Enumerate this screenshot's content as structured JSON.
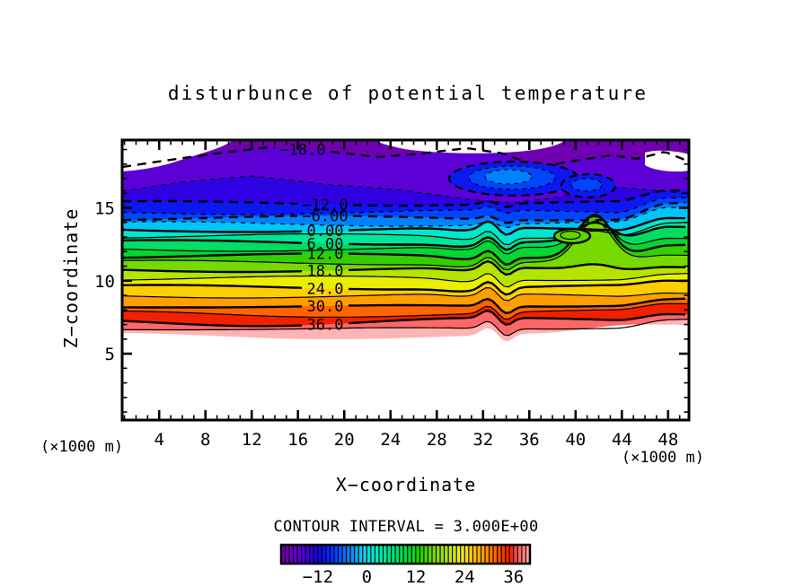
{
  "title": "disturbunce  of  potential  temperature",
  "axes": {
    "x": {
      "label": "X−coordinate",
      "unit_left": "(×1000 m)",
      "unit_right": "(×1000 m)",
      "range": [
        0.8,
        49.8
      ],
      "major_ticks": [
        4,
        8,
        12,
        16,
        20,
        24,
        28,
        32,
        36,
        40,
        44,
        48
      ],
      "minor_step": 1
    },
    "y": {
      "label": "Z−coordinate",
      "range": [
        0.45,
        19.65
      ],
      "major_ticks": [
        5,
        10,
        15
      ],
      "minor_step": 1
    }
  },
  "colorbar": {
    "title": "CONTOUR INTERVAL  =  3.000E+00",
    "min": -21,
    "max": 40,
    "cell_step": 1,
    "ticks": [
      {
        "value": -12,
        "label": "−12"
      },
      {
        "value": 0,
        "label": "0"
      },
      {
        "value": 12,
        "label": "12"
      },
      {
        "value": 24,
        "label": "24"
      },
      {
        "value": 36,
        "label": "36"
      }
    ]
  },
  "chart_data": {
    "type": "heatmap",
    "subtype": "filled_contour",
    "title": "disturbunce of potential temperature",
    "xlabel": "X−coordinate",
    "ylabel": "Z−coordinate",
    "x_range_x1000m": [
      1,
      49
    ],
    "z_range_x1000m": [
      0.5,
      19.5
    ],
    "contour_interval": 3.0,
    "levels": [
      -18,
      -15,
      -12,
      -9,
      -6,
      -3,
      0,
      3,
      6,
      9,
      12,
      15,
      18,
      21,
      24,
      27,
      30,
      33,
      36,
      39
    ],
    "line_style": {
      "negative": "dashed",
      "positive": "solid",
      "bold_every": 6
    },
    "contour_labels": [
      {
        "level": -18,
        "text": "−18.0"
      },
      {
        "level": -12,
        "text": "−12.0"
      },
      {
        "level": -6,
        "text": "−6.00"
      },
      {
        "level": 0,
        "text": "0.00"
      },
      {
        "level": 6,
        "text": "6.00"
      },
      {
        "level": 12,
        "text": "12.0"
      },
      {
        "level": 18,
        "text": "18.0"
      },
      {
        "level": 24,
        "text": "24.0"
      },
      {
        "level": 30,
        "text": "30.0"
      },
      {
        "level": 36,
        "text": "36.0"
      }
    ],
    "colormap": [
      {
        "v": -21,
        "c": [
          120,
          0,
          160
        ]
      },
      {
        "v": -16,
        "c": [
          90,
          0,
          220
        ]
      },
      {
        "v": -12,
        "c": [
          20,
          0,
          230
        ]
      },
      {
        "v": -8,
        "c": [
          0,
          60,
          255
        ]
      },
      {
        "v": -4,
        "c": [
          0,
          140,
          255
        ]
      },
      {
        "v": -1,
        "c": [
          0,
          210,
          245
        ]
      },
      {
        "v": 2,
        "c": [
          0,
          235,
          200
        ]
      },
      {
        "v": 6,
        "c": [
          0,
          225,
          120
        ]
      },
      {
        "v": 10,
        "c": [
          0,
          215,
          60
        ]
      },
      {
        "v": 13,
        "c": [
          40,
          205,
          0
        ]
      },
      {
        "v": 16,
        "c": [
          110,
          215,
          0
        ]
      },
      {
        "v": 20,
        "c": [
          190,
          230,
          0
        ]
      },
      {
        "v": 23,
        "c": [
          245,
          240,
          0
        ]
      },
      {
        "v": 26,
        "c": [
          255,
          200,
          0
        ]
      },
      {
        "v": 29,
        "c": [
          255,
          150,
          0
        ]
      },
      {
        "v": 32,
        "c": [
          255,
          90,
          0
        ]
      },
      {
        "v": 35,
        "c": [
          240,
          20,
          0
        ]
      },
      {
        "v": 37,
        "c": [
          255,
          90,
          90
        ]
      },
      {
        "v": 39,
        "c": [
          255,
          140,
          140
        ]
      },
      {
        "v": 40,
        "c": [
          255,
          180,
          180
        ]
      }
    ],
    "frame_color": "#000000",
    "text_color": "#000000",
    "background_color": "#ffffff"
  }
}
